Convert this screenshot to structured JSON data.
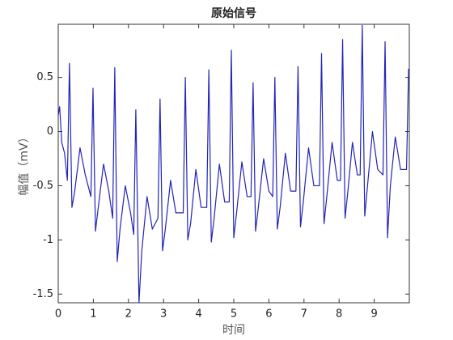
{
  "chart_data": {
    "type": "line",
    "title": "原始信号",
    "x_label": "时间",
    "y_label": "幅值（mV）",
    "xlim": [
      0,
      10
    ],
    "ylim": [
      -1.58,
      0.99
    ],
    "xticks": [
      0,
      1,
      2,
      3,
      4,
      5,
      6,
      7,
      8,
      9
    ],
    "yticks": [
      -1.5,
      -1,
      -0.5,
      0,
      0.5
    ],
    "series": [
      {
        "color": "#2323b8",
        "x": [
          0,
          0.04,
          0.1,
          0.18,
          0.26,
          0.32,
          0.39,
          0.47,
          0.62,
          0.77,
          0.93,
          0.99,
          1.06,
          1.14,
          1.29,
          1.44,
          1.55,
          1.61,
          1.68,
          1.76,
          1.91,
          2.06,
          2.15,
          2.21,
          2.3,
          2.38,
          2.53,
          2.68,
          2.84,
          2.9,
          2.97,
          3.05,
          3.2,
          3.35,
          3.56,
          3.62,
          3.69,
          3.77,
          3.92,
          4.07,
          4.23,
          4.29,
          4.36,
          4.44,
          4.59,
          4.74,
          4.87,
          4.93,
          5.0,
          5.08,
          5.23,
          5.38,
          5.49,
          5.55,
          5.62,
          5.7,
          5.85,
          6.0,
          6.11,
          6.17,
          6.24,
          6.32,
          6.47,
          6.62,
          6.77,
          6.83,
          6.9,
          6.98,
          7.13,
          7.28,
          7.44,
          7.5,
          7.57,
          7.65,
          7.8,
          7.95,
          8.04,
          8.1,
          8.17,
          8.25,
          8.38,
          8.52,
          8.6,
          8.66,
          8.73,
          8.81,
          8.95,
          9.1,
          9.25,
          9.31,
          9.38,
          9.46,
          9.6,
          9.75,
          9.92,
          9.98
        ],
        "values": [
          0.15,
          0.23,
          -0.1,
          -0.2,
          -0.45,
          0.63,
          -0.7,
          -0.55,
          -0.15,
          -0.4,
          -0.6,
          0.4,
          -0.92,
          -0.7,
          -0.3,
          -0.55,
          -0.8,
          0.59,
          -1.2,
          -0.9,
          -0.5,
          -0.75,
          -0.95,
          0.2,
          -1.58,
          -1.1,
          -0.6,
          -0.9,
          -0.8,
          0.3,
          -1.1,
          -0.9,
          -0.45,
          -0.75,
          -0.75,
          0.5,
          -1.0,
          -0.85,
          -0.35,
          -0.7,
          -0.7,
          0.57,
          -1.02,
          -0.8,
          -0.3,
          -0.65,
          -0.65,
          0.75,
          -0.98,
          -0.75,
          -0.28,
          -0.6,
          -0.6,
          0.45,
          -0.92,
          -0.7,
          -0.25,
          -0.55,
          -0.6,
          0.5,
          -0.9,
          -0.7,
          -0.2,
          -0.55,
          -0.55,
          0.6,
          -0.88,
          -0.65,
          -0.15,
          -0.5,
          -0.5,
          0.72,
          -0.85,
          -0.6,
          -0.1,
          -0.45,
          -0.45,
          0.85,
          -0.8,
          -0.55,
          -0.1,
          -0.4,
          -0.4,
          0.98,
          -0.78,
          -0.5,
          0.0,
          -0.35,
          -0.4,
          0.83,
          -0.98,
          -0.5,
          -0.05,
          -0.35,
          -0.35,
          0.58
        ]
      }
    ]
  }
}
